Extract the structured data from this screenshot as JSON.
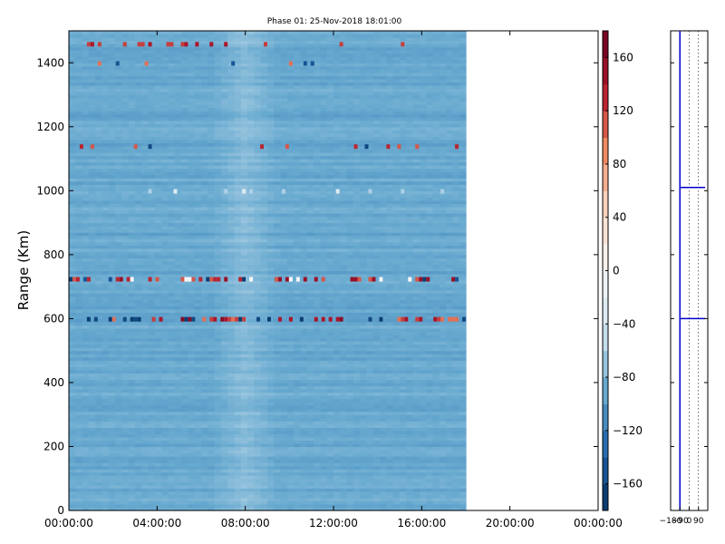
{
  "chart_data": [
    {
      "type": "heatmap",
      "title": "Phase 01: 25-Nov-2018 18:01:00",
      "xlabel": "",
      "ylabel": "Range (Km)",
      "x_ticks": [
        "00:00:00",
        "04:00:00",
        "08:00:00",
        "12:00:00",
        "16:00:00",
        "20:00:00",
        "00:00:00"
      ],
      "x_range_hours": [
        0,
        24
      ],
      "data_end_hours": 18,
      "y_ticks": [
        0,
        200,
        400,
        600,
        800,
        1000,
        1200,
        1400
      ],
      "ylim": [
        0,
        1500
      ],
      "base_phase_deg": -90,
      "lighter_band_hours": [
        6.5,
        9.5
      ],
      "noise_rows_km": [
        {
          "range": 600,
          "example_values": [
            160,
            -170,
            120,
            100,
            -160,
            140
          ]
        },
        {
          "range": 725,
          "example_values": [
            150,
            -170,
            110,
            130,
            -150,
            0
          ]
        },
        {
          "range": 1140,
          "example_values": [
            130,
            -160,
            110
          ]
        },
        {
          "range": 1460,
          "example_values": [
            140,
            120
          ]
        },
        {
          "range": 1400,
          "example_values": [
            -150,
            100
          ]
        },
        {
          "range": 1000,
          "example_values": [
            -30,
            -60
          ]
        }
      ],
      "colorbar": {
        "colormap": "RdBu_r",
        "range": [
          -180,
          180
        ],
        "ticks": [
          160,
          120,
          80,
          40,
          0,
          -40,
          -80,
          -120,
          -160
        ]
      }
    },
    {
      "type": "line",
      "title": "",
      "x_ticks": [
        -180,
        -90,
        0,
        90
      ],
      "xlim": [
        -180,
        180
      ],
      "ylim": [
        0,
        1500
      ],
      "profile_base_deg": -90,
      "spikes_km": [
        {
          "range": 600,
          "value": 180
        },
        {
          "range": 1010,
          "value": 180
        }
      ]
    }
  ]
}
